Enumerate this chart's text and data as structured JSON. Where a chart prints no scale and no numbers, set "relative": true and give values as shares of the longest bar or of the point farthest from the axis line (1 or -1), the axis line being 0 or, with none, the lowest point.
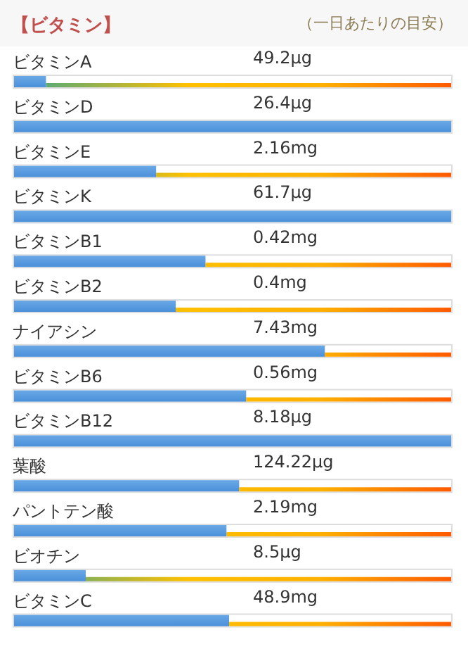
{
  "chart_data": {
    "type": "bar",
    "orientation": "horizontal",
    "relative": true,
    "title": "【ビタミン】",
    "subtitle": "（一日あたりの目安）",
    "categories": [
      "ビタミンA",
      "ビタミンD",
      "ビタミンE",
      "ビタミンK",
      "ビタミンB1",
      "ビタミンB2",
      "ナイアシン",
      "ビタミンB6",
      "ビタミンB12",
      "葉酸",
      "パントテン酸",
      "ビオチン",
      "ビタミンC"
    ],
    "values": [
      0.073,
      1,
      0.325,
      1,
      0.438,
      0.37,
      0.711,
      0.531,
      1,
      0.515,
      0.486,
      0.164,
      0.492
    ],
    "annotations": [
      "49.2μg",
      "26.4μg",
      "2.16mg",
      "61.7μg",
      "0.42mg",
      "0.4mg",
      "7.43mg",
      "0.56mg",
      "8.18μg",
      "124.22μg",
      "2.19mg",
      "8.5μg",
      "48.9mg"
    ],
    "color": "#4a90d9"
  }
}
